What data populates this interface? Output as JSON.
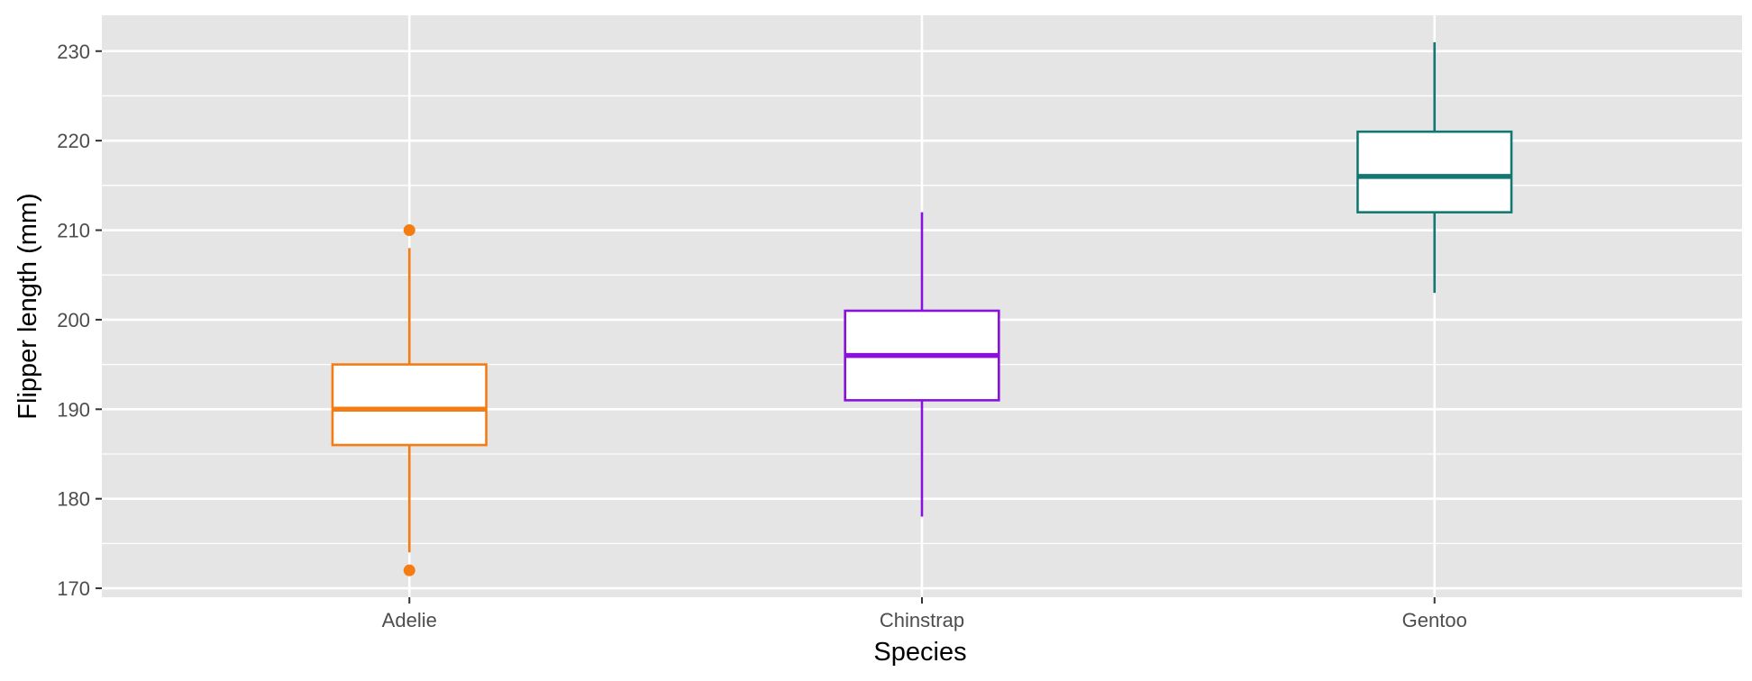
{
  "chart_data": {
    "type": "box",
    "xlabel": "Species",
    "ylabel": "Flipper length (mm)",
    "ylim": [
      169,
      234
    ],
    "yticks": [
      170,
      180,
      190,
      200,
      210,
      220,
      230
    ],
    "grid": true,
    "legend": "none",
    "categories": [
      "Adelie",
      "Chinstrap",
      "Gentoo"
    ],
    "boxes": [
      {
        "category": "Adelie",
        "color": "#f57c12",
        "whisker_low": 174,
        "q1": 186,
        "median": 190,
        "q3": 195,
        "whisker_high": 208,
        "outliers": [
          172,
          210
        ]
      },
      {
        "category": "Chinstrap",
        "color": "#8a10dd",
        "whisker_low": 178,
        "q1": 191,
        "median": 196,
        "q3": 201,
        "whisker_high": 212,
        "outliers": []
      },
      {
        "category": "Gentoo",
        "color": "#137873",
        "whisker_low": 203,
        "q1": 212,
        "median": 216,
        "q3": 221,
        "whisker_high": 231,
        "outliers": []
      }
    ]
  }
}
